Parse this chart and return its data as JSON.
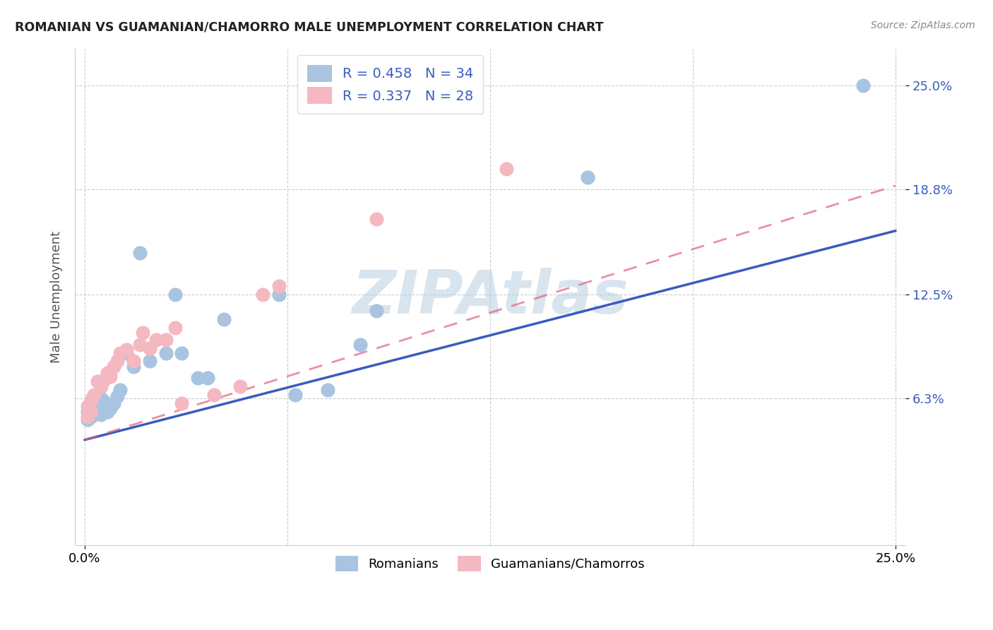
{
  "title": "ROMANIAN VS GUAMANIAN/CHAMORRO MALE UNEMPLOYMENT CORRELATION CHART",
  "source": "Source: ZipAtlas.com",
  "ylabel": "Male Unemployment",
  "xlim": [
    0.0,
    0.25
  ],
  "ylim": [
    -0.025,
    0.272
  ],
  "ytick_labels": [
    "6.3%",
    "12.5%",
    "18.8%",
    "25.0%"
  ],
  "ytick_values": [
    0.063,
    0.125,
    0.188,
    0.25
  ],
  "xtick_labels": [
    "0.0%",
    "25.0%"
  ],
  "xtick_values": [
    0.0,
    0.25
  ],
  "R_romanian": 0.458,
  "N_romanian": 34,
  "R_guamanian": 0.337,
  "N_guamanian": 28,
  "color_romanian": "#a8c4e0",
  "color_guamanian": "#f4b8c1",
  "line_color_romanian": "#3a5bbf",
  "line_color_guamanian": "#e06080",
  "label_color": "#3a5bbf",
  "legend_label_1": "Romanians",
  "legend_label_2": "Guamanians/Chamorros",
  "watermark": "ZIPAtlas",
  "rom_line_x0": 0.0,
  "rom_line_y0": 0.038,
  "rom_line_x1": 0.25,
  "rom_line_y1": 0.163,
  "gua_line_x0": 0.0,
  "gua_line_y0": 0.038,
  "gua_line_x1": 0.25,
  "gua_line_y1": 0.19,
  "romanian_x": [
    0.001,
    0.001,
    0.002,
    0.002,
    0.003,
    0.003,
    0.004,
    0.004,
    0.005,
    0.005,
    0.006,
    0.006,
    0.007,
    0.008,
    0.009,
    0.01,
    0.011,
    0.013,
    0.015,
    0.017,
    0.02,
    0.025,
    0.028,
    0.03,
    0.035,
    0.038,
    0.043,
    0.06,
    0.065,
    0.075,
    0.085,
    0.09,
    0.155,
    0.24
  ],
  "romanian_y": [
    0.05,
    0.055,
    0.052,
    0.058,
    0.055,
    0.062,
    0.057,
    0.064,
    0.053,
    0.063,
    0.055,
    0.061,
    0.055,
    0.057,
    0.06,
    0.064,
    0.068,
    0.09,
    0.082,
    0.15,
    0.085,
    0.09,
    0.125,
    0.09,
    0.075,
    0.075,
    0.11,
    0.125,
    0.065,
    0.068,
    0.095,
    0.115,
    0.195,
    0.25
  ],
  "guamanian_x": [
    0.001,
    0.001,
    0.002,
    0.002,
    0.003,
    0.004,
    0.005,
    0.006,
    0.007,
    0.008,
    0.009,
    0.01,
    0.011,
    0.013,
    0.015,
    0.017,
    0.018,
    0.02,
    0.022,
    0.025,
    0.028,
    0.03,
    0.04,
    0.048,
    0.055,
    0.06,
    0.09,
    0.13
  ],
  "guamanian_y": [
    0.052,
    0.058,
    0.055,
    0.062,
    0.065,
    0.073,
    0.07,
    0.074,
    0.078,
    0.076,
    0.082,
    0.085,
    0.09,
    0.092,
    0.085,
    0.095,
    0.102,
    0.093,
    0.098,
    0.098,
    0.105,
    0.06,
    0.065,
    0.07,
    0.125,
    0.13,
    0.17,
    0.2
  ]
}
